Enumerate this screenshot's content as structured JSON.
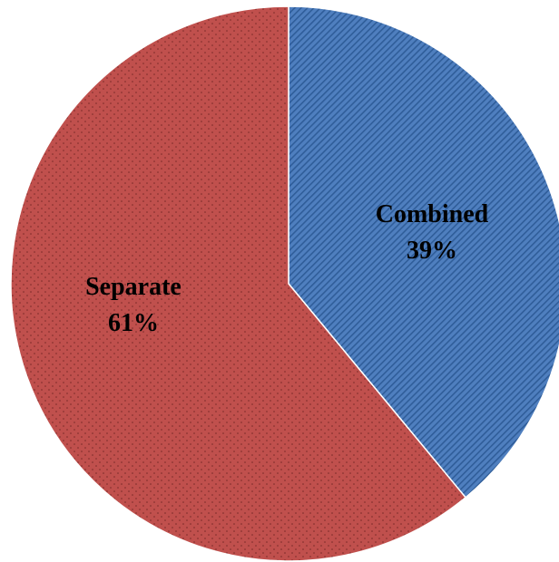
{
  "chart_data": {
    "type": "pie",
    "start_angle_deg": 0,
    "direction": "clockwise",
    "slices": [
      {
        "name": "Combined",
        "percent_label": "39%",
        "value": 39,
        "color": "#4f7fbf",
        "stripe_color": "#2f5d99",
        "pattern": "diagonal-stripes"
      },
      {
        "name": "Separate",
        "percent_label": "61%",
        "value": 61,
        "color": "#c0504d",
        "dot_color": "#7a2a28",
        "pattern": "dots"
      }
    ]
  }
}
